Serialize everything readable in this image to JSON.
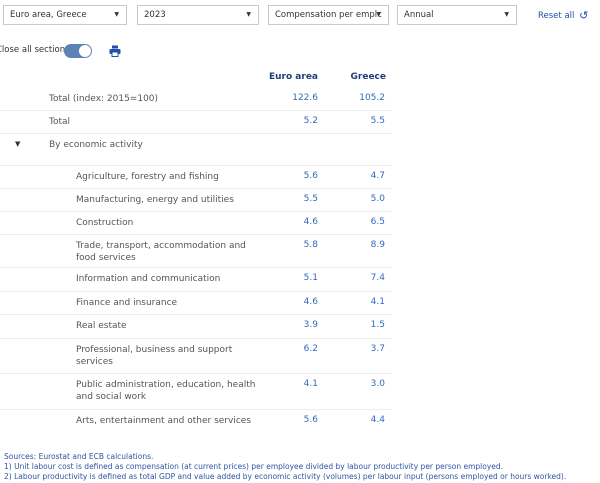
{
  "filters": {
    "country": "Euro area, Greece",
    "year": "2023",
    "measure": "Compensation per emplc",
    "frequency": "Annual",
    "reset_label": "Reset all"
  },
  "toolbar": {
    "toggle_label": "Close all sections"
  },
  "table": {
    "columns": [
      "Euro area",
      "Greece"
    ],
    "rows": [
      {
        "label": "Total (index: 2015=100)",
        "euro": "122.6",
        "greece": "105.2"
      },
      {
        "label": "Total",
        "euro": "5.2",
        "greece": "5.5"
      },
      {
        "label": "By economic activity"
      },
      {
        "label": "Agriculture, forestry and fishing",
        "euro": "5.6",
        "greece": "4.7"
      },
      {
        "label": "Manufacturing, energy and utilities",
        "euro": "5.5",
        "greece": "5.0"
      },
      {
        "label": "Construction",
        "euro": "4.6",
        "greece": "6.5"
      },
      {
        "label": "Trade, transport, accommodation and food services",
        "euro": "5.8",
        "greece": "8.9"
      },
      {
        "label": "Information and communication",
        "euro": "5.1",
        "greece": "7.4"
      },
      {
        "label": "Finance and insurance",
        "euro": "4.6",
        "greece": "4.1"
      },
      {
        "label": "Real estate",
        "euro": "3.9",
        "greece": "1.5"
      },
      {
        "label": "Professional, business and support services",
        "euro": "6.2",
        "greece": "3.7"
      },
      {
        "label": "Public administration, education, health and social work",
        "euro": "4.1",
        "greece": "3.0"
      },
      {
        "label": "Arts, entertainment and other services",
        "euro": "5.6",
        "greece": "4.4"
      }
    ]
  },
  "notes": [
    "Sources: Eurostat and ECB calculations.",
    "1) Unit labour cost is defined as compensation (at current prices) per employee divided by labour productivity per person employed.",
    "2) Labour productivity is defined as total GDP and value added by economic activity (volumes) per labour input (persons employed or hours worked)."
  ]
}
